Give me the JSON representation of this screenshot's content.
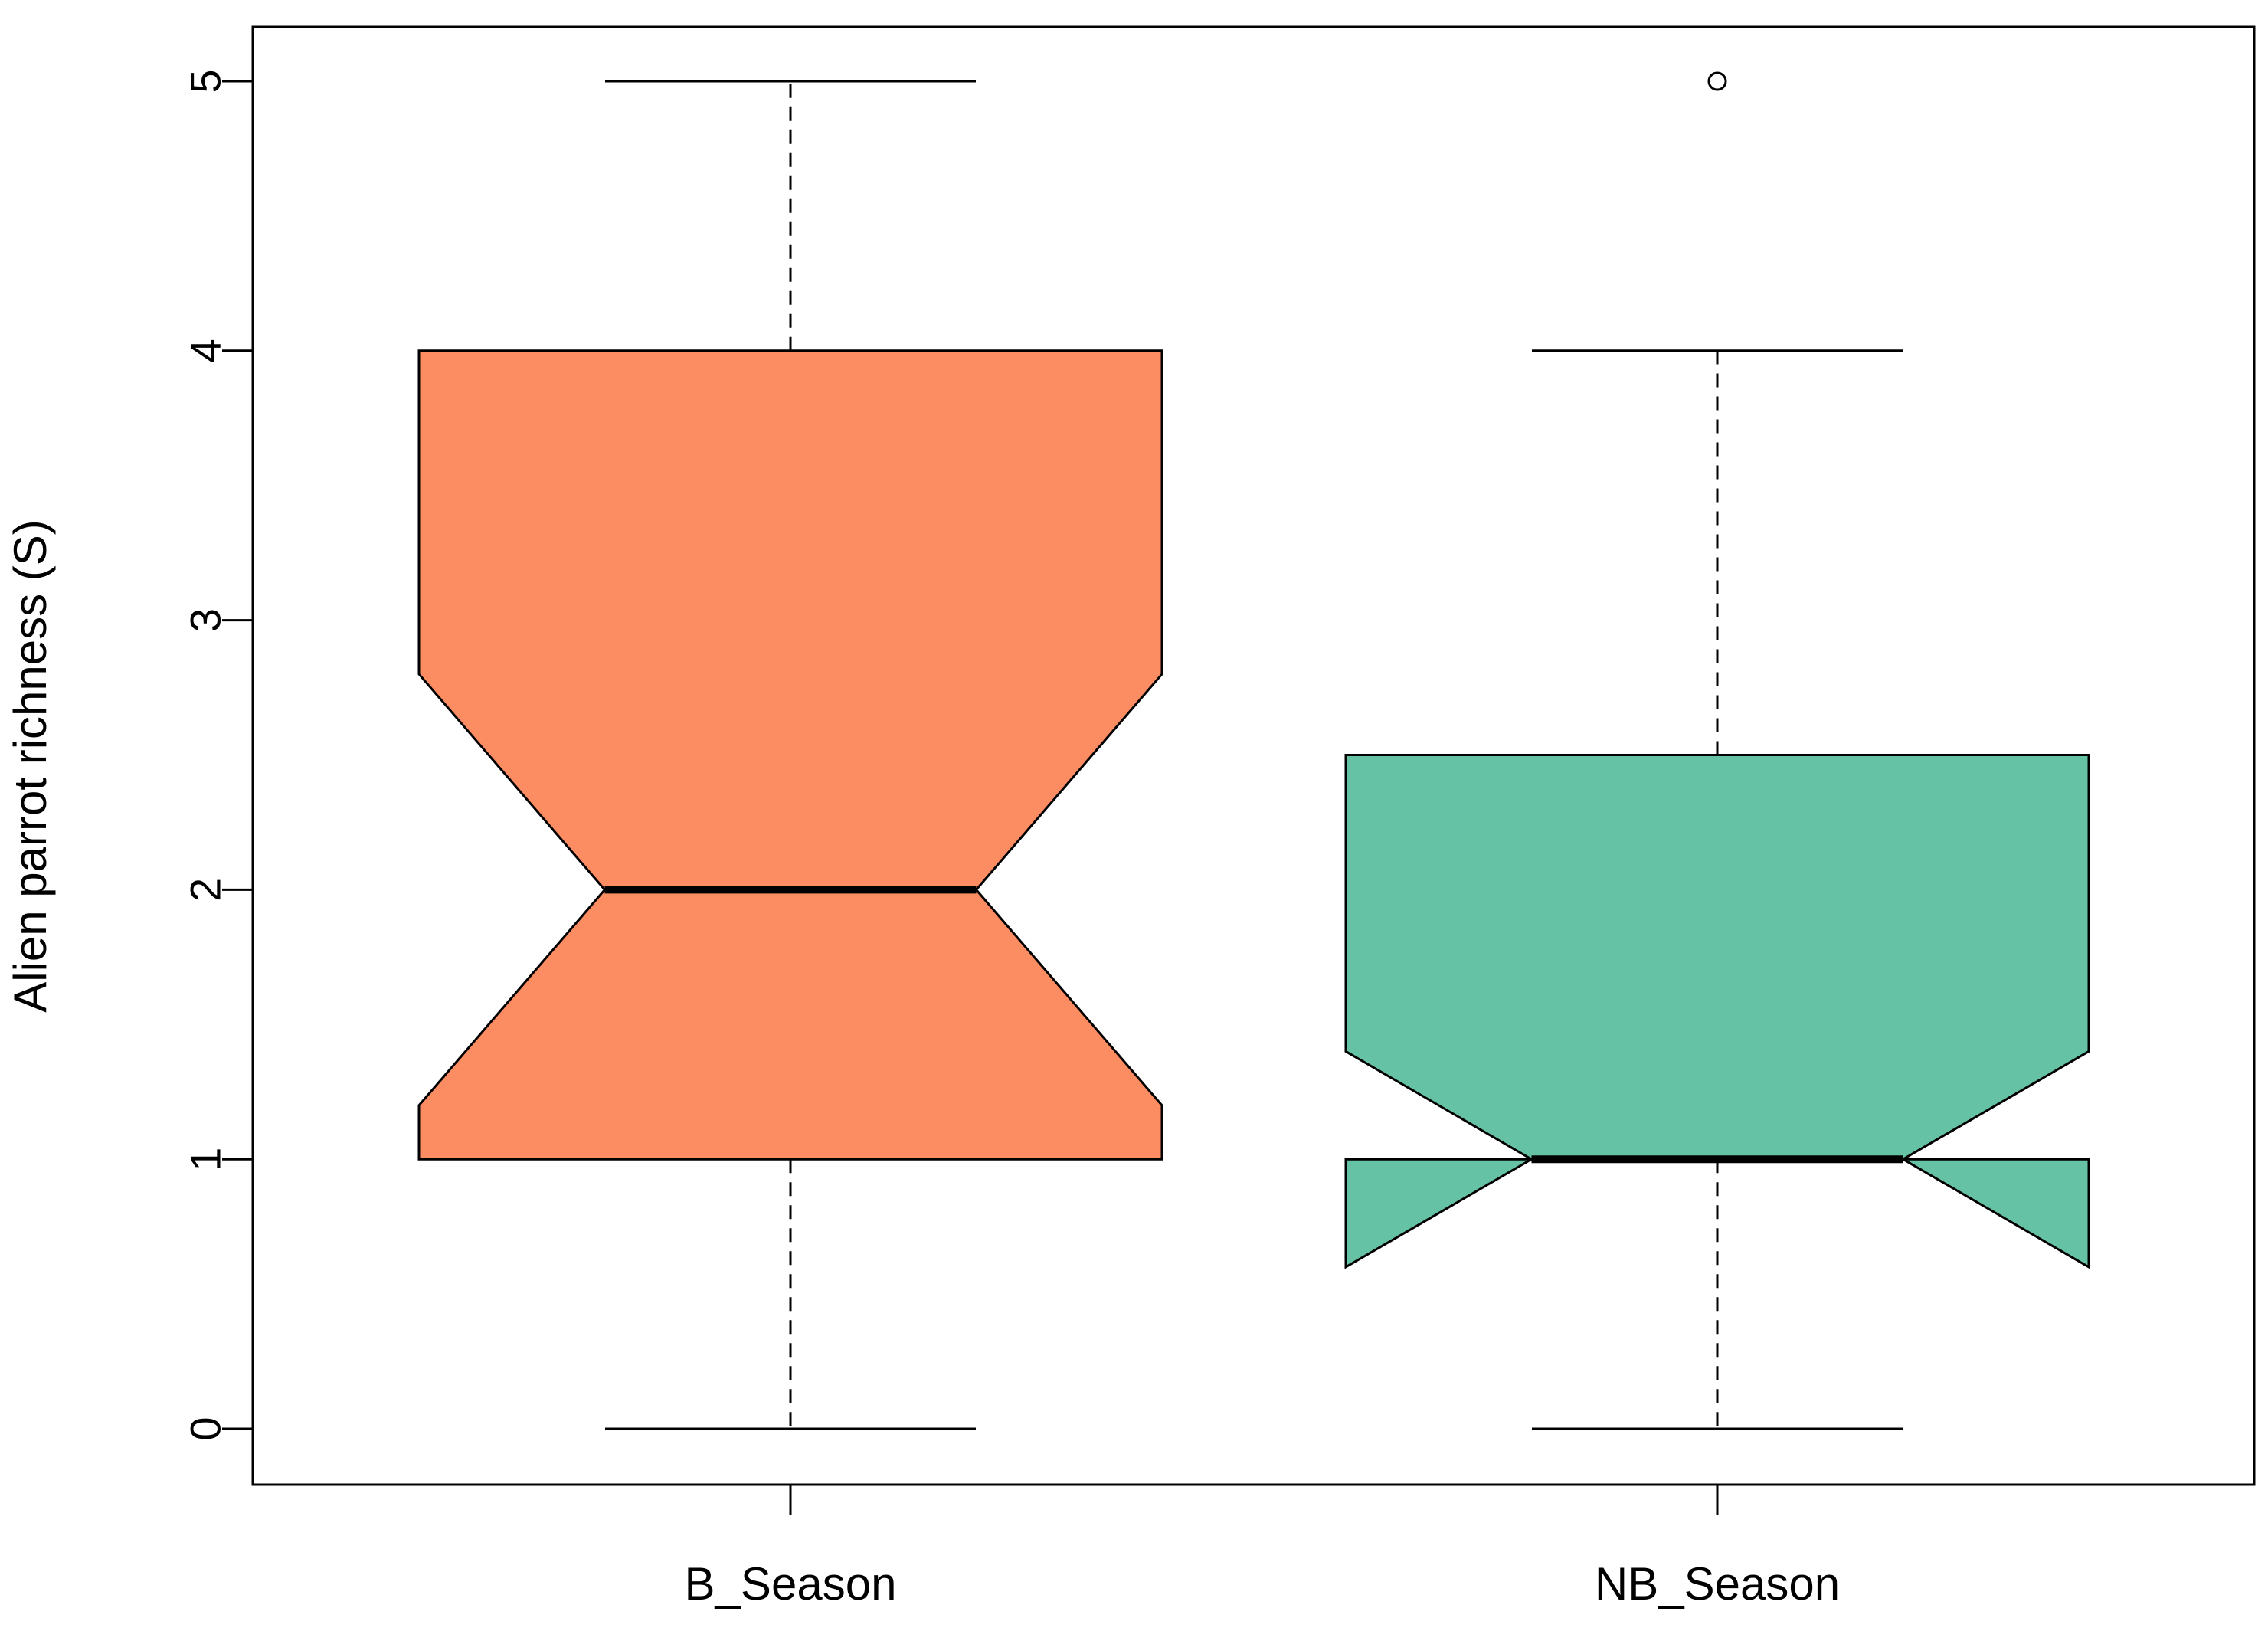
{
  "chart_data": {
    "type": "boxplot",
    "title": "",
    "xlabel": "",
    "ylabel": "Alien parrot richness (S)",
    "ylim": [
      -0.2,
      5.2
    ],
    "yticks": [
      0,
      1,
      2,
      3,
      4,
      5
    ],
    "ytick_labels": [
      "0",
      "1",
      "2",
      "3",
      "4",
      "5"
    ],
    "notched": true,
    "grid": false,
    "categories": [
      "B_Season",
      "NB_Season"
    ],
    "boxes": [
      {
        "category": "B_Season",
        "whisker_low": 0,
        "q1": 1,
        "median": 2,
        "q3": 4,
        "whisker_high": 5,
        "notch_low": 1.2,
        "notch_high": 2.8,
        "outliers": [],
        "color": "#fc8d62"
      },
      {
        "category": "NB_Season",
        "whisker_low": 0,
        "q1": 1,
        "median": 1,
        "q3": 2.5,
        "whisker_high": 4,
        "notch_low": 0.6,
        "notch_high": 1.4,
        "outliers": [
          5
        ],
        "color": "#66c2a5"
      }
    ]
  }
}
